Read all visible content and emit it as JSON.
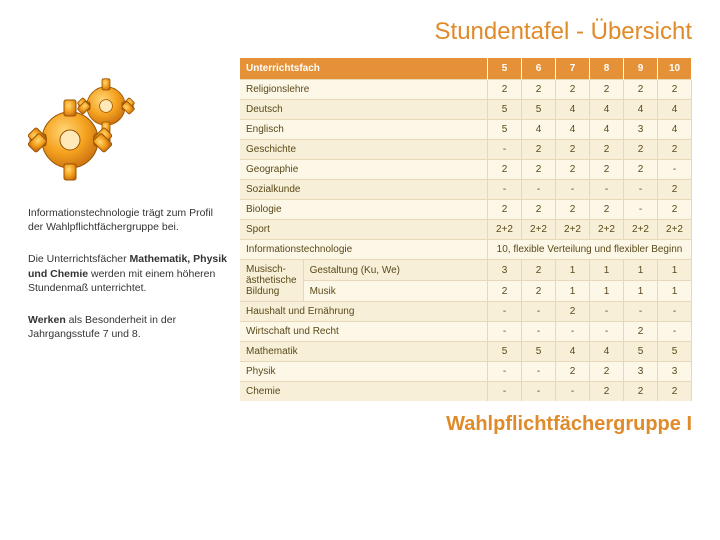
{
  "colors": {
    "title": "#e08a2a",
    "header_bg": "#e49138",
    "row_even": "#fdf7e7",
    "row_odd": "#f7efd8",
    "cell_text": "#5a4a1a",
    "footer": "#e08a2a"
  },
  "title": "Stundentafel - Übersicht",
  "footer": "Wahlpflichtfächergruppe I",
  "left": {
    "p1_a": "Informationstechnologie trägt zum Profil der Wahlpflichtfächergruppe bei.",
    "p2_a": "Die Unterrichtsfächer ",
    "p2_b": "Mathematik, Physik und Chemie",
    "p2_c": " werden mit einem höheren Stundenmaß unterrichtet.",
    "p3_b": "Werken",
    "p3_c": " als Besonderheit in der Jahrgangsstufe 7 und 8."
  },
  "table": {
    "header_subject": "Unterrichtsfach",
    "grades": [
      "5",
      "6",
      "7",
      "8",
      "9",
      "10"
    ],
    "rows": [
      {
        "label": "Religionslehre",
        "v": [
          "2",
          "2",
          "2",
          "2",
          "2",
          "2"
        ]
      },
      {
        "label": "Deutsch",
        "v": [
          "5",
          "5",
          "4",
          "4",
          "4",
          "4"
        ]
      },
      {
        "label": "Englisch",
        "v": [
          "5",
          "4",
          "4",
          "4",
          "3",
          "4"
        ]
      },
      {
        "label": "Geschichte",
        "v": [
          "-",
          "2",
          "2",
          "2",
          "2",
          "2"
        ]
      },
      {
        "label": "Geographie",
        "v": [
          "2",
          "2",
          "2",
          "2",
          "2",
          "-"
        ]
      },
      {
        "label": "Sozialkunde",
        "v": [
          "-",
          "-",
          "-",
          "-",
          "-",
          "2"
        ]
      },
      {
        "label": "Biologie",
        "v": [
          "2",
          "2",
          "2",
          "2",
          "-",
          "2"
        ]
      },
      {
        "label": "Sport",
        "v": [
          "2+2",
          "2+2",
          "2+2",
          "2+2",
          "2+2",
          "2+2"
        ]
      }
    ],
    "info_label": "Informationstechnologie",
    "info_merged": "10, flexible Verteilung und flexibler Beginn",
    "mae_col": "Musisch-ästhetische Bildung",
    "mae_rows": [
      {
        "sub": "Gestaltung (Ku, We)",
        "v": [
          "3",
          "2",
          "1",
          "1",
          "1",
          "1"
        ]
      },
      {
        "sub": "Musik",
        "v": [
          "2",
          "2",
          "1",
          "1",
          "1",
          "1"
        ]
      }
    ],
    "rows2": [
      {
        "label": "Haushalt und Ernährung",
        "v": [
          "-",
          "-",
          "2",
          "-",
          "-",
          "-"
        ]
      },
      {
        "label": "Wirtschaft und Recht",
        "v": [
          "-",
          "-",
          "-",
          "-",
          "2",
          "-"
        ]
      },
      {
        "label": "Mathematik",
        "v": [
          "5",
          "5",
          "4",
          "4",
          "5",
          "5"
        ]
      },
      {
        "label": "Physik",
        "v": [
          "-",
          "-",
          "2",
          "2",
          "3",
          "3"
        ]
      },
      {
        "label": "Chemie",
        "v": [
          "-",
          "-",
          "-",
          "2",
          "2",
          "2"
        ]
      }
    ]
  }
}
